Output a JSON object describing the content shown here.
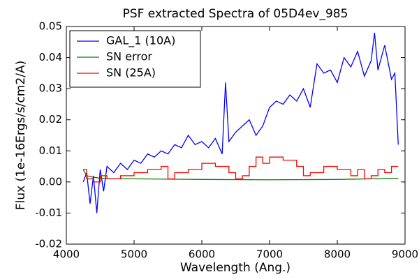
{
  "chart_data": {
    "type": "line",
    "title": "PSF extracted Spectra of 05D4ev_985",
    "title_color": "#ff0000",
    "xlabel": "Wavelength (Ang.)",
    "ylabel": "Flux (1e-16Ergs/s/cm2/A)",
    "xlim": [
      4000,
      9000
    ],
    "xticks": [
      4000,
      5000,
      6000,
      7000,
      8000,
      9000
    ],
    "ylim": [
      -0.02,
      0.05
    ],
    "yticks": [
      -0.02,
      -0.01,
      {
        "value": 0,
        "label": "0.00"
      },
      0.01,
      0.02,
      0.03,
      0.04,
      0.05
    ],
    "grid": false,
    "legend": "upper left",
    "series": [
      {
        "name": "GAL_1 (10A)",
        "color": "#0000ff",
        "x": [
          4250,
          4300,
          4350,
          4400,
          4450,
          4500,
          4550,
          4600,
          4700,
          4800,
          4900,
          5000,
          5100,
          5200,
          5300,
          5400,
          5500,
          5600,
          5700,
          5800,
          5900,
          6000,
          6100,
          6200,
          6300,
          6350,
          6400,
          6500,
          6600,
          6700,
          6800,
          6900,
          7000,
          7100,
          7200,
          7300,
          7400,
          7500,
          7600,
          7700,
          7800,
          7900,
          8000,
          8100,
          8200,
          8300,
          8400,
          8500,
          8550,
          8600,
          8700,
          8800,
          8850,
          8900
        ],
        "values": [
          0.0,
          0.003,
          -0.007,
          0.002,
          -0.01,
          0.004,
          -0.003,
          0.005,
          0.003,
          0.006,
          0.004,
          0.007,
          0.006,
          0.009,
          0.008,
          0.01,
          0.009,
          0.012,
          0.011,
          0.015,
          0.012,
          0.013,
          0.011,
          0.014,
          0.009,
          0.032,
          0.013,
          0.016,
          0.018,
          0.02,
          0.015,
          0.018,
          0.024,
          0.026,
          0.025,
          0.028,
          0.026,
          0.03,
          0.024,
          0.038,
          0.035,
          0.036,
          0.032,
          0.04,
          0.037,
          0.042,
          0.034,
          0.039,
          0.048,
          0.036,
          0.044,
          0.033,
          0.035,
          0.012
        ]
      },
      {
        "name": "SN error",
        "color": "#008000",
        "x": [
          4250,
          4300,
          4400,
          4600,
          5000,
          6000,
          7000,
          8000,
          8500,
          8900
        ],
        "values": [
          0.004,
          0.002,
          0.0015,
          0.001,
          0.001,
          0.0008,
          0.0007,
          0.0008,
          0.001,
          0.0012
        ]
      },
      {
        "name": "SN (25A)",
        "color": "#ff0000",
        "drawstyle": "steps",
        "x": [
          4250,
          4300,
          4400,
          4500,
          4600,
          4800,
          5000,
          5200,
          5400,
          5500,
          5600,
          5800,
          6000,
          6200,
          6400,
          6500,
          6600,
          6700,
          6800,
          6900,
          7000,
          7200,
          7400,
          7500,
          7600,
          7800,
          8000,
          8200,
          8300,
          8400,
          8500,
          8600,
          8700,
          8800,
          8900
        ],
        "values": [
          0.004,
          0.001,
          0.0,
          0.002,
          0.001,
          0.002,
          0.003,
          0.004,
          0.005,
          0.001,
          0.003,
          0.004,
          0.006,
          0.005,
          0.003,
          0.001,
          0.002,
          0.005,
          0.008,
          0.006,
          0.008,
          0.007,
          0.005,
          0.002,
          0.003,
          0.005,
          0.004,
          0.002,
          0.004,
          0.001,
          0.002,
          0.004,
          0.003,
          0.005,
          0.005
        ]
      }
    ]
  }
}
